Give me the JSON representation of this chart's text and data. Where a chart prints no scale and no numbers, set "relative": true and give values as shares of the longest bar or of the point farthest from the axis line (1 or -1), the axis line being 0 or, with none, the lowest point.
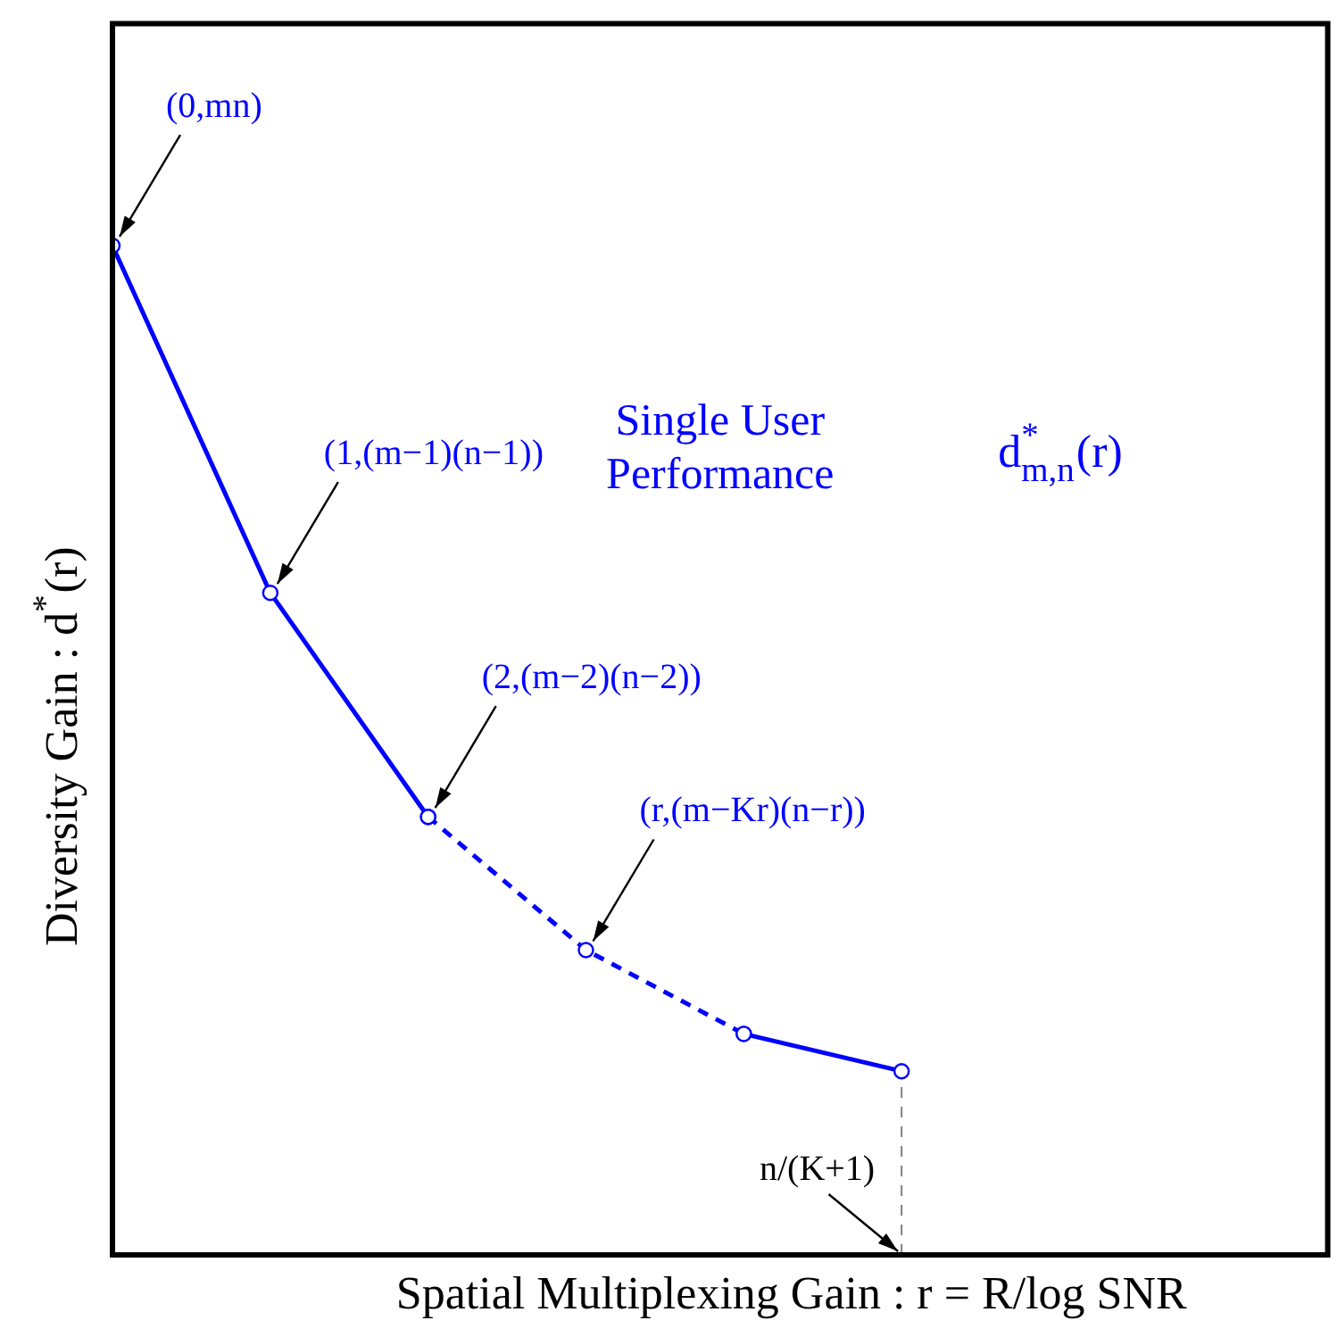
{
  "chart_data": {
    "type": "line",
    "relative": true,
    "xlabel": "Spatial Multiplexing Gain : r = R/log SNR",
    "ylabel": "Diversity Gain : d$^{*}$(r)",
    "marker": "circle",
    "legend": false,
    "categories": [
      null,
      null,
      null,
      null,
      null,
      null
    ],
    "series": [
      {
        "color": "#0000ff",
        "line_style": "solid",
        "values": [
          1,
          0.656,
          0.434,
          null,
          null,
          null
        ]
      },
      {
        "color": "#0000ff",
        "line_style": "dashed",
        "values": [
          null,
          null,
          0.434,
          0.302,
          0.219,
          null
        ]
      },
      {
        "color": "#0000ff",
        "line_style": "solid",
        "values": [
          null,
          null,
          null,
          null,
          0.219,
          0.182
        ]
      }
    ],
    "ref_lines": [
      {
        "axis": "x",
        "label": "n/(K+1)",
        "color": "#808080",
        "line_style": "dashed"
      }
    ],
    "annotations": [
      "(0,mn)",
      "(1,(m−1)(n−1))",
      "(2,(m−2)(n−2))",
      "(r,(m−Kr)(n−r))",
      "Single User Performance",
      "d$^{*}$$_{m,n}$(r)"
    ]
  }
}
